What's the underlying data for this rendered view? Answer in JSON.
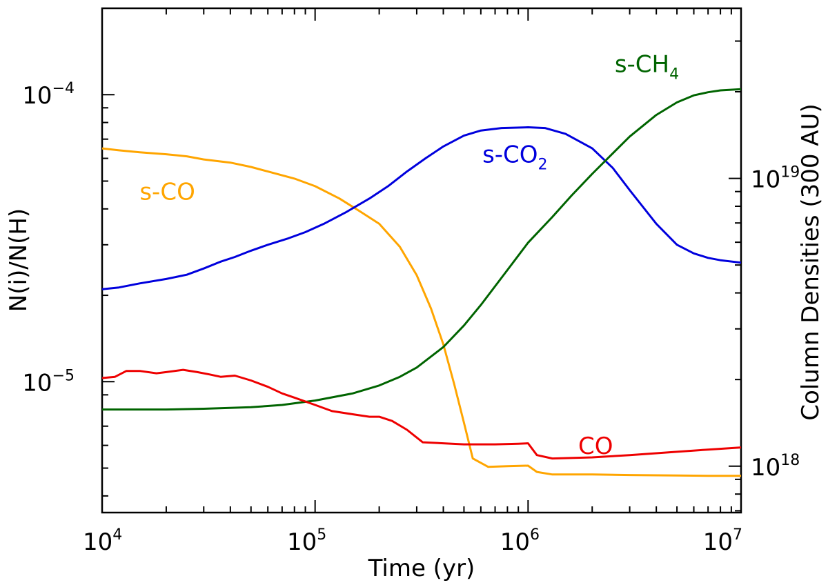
{
  "chart_data": {
    "type": "line",
    "x_scale": "log",
    "y_scale": "log",
    "xlim": [
      10000,
      10000000
    ],
    "ylim": [
      3.5e-06,
      0.0002
    ],
    "xlabel": "Time (yr)",
    "ylabel": "N(i)/N(H)",
    "ylabel_right": "Column Densities (300 AU)",
    "x_ticks": [
      {
        "value": 10000.0,
        "base": "10",
        "exp": "4"
      },
      {
        "value": 100000.0,
        "base": "10",
        "exp": "5"
      },
      {
        "value": 1000000.0,
        "base": "10",
        "exp": "6"
      },
      {
        "value": 10000000.0,
        "base": "10",
        "exp": "7"
      }
    ],
    "y_ticks": [
      {
        "value": 1e-05,
        "base": "10",
        "exp": "−5"
      },
      {
        "value": 0.0001,
        "base": "10",
        "exp": "−4"
      }
    ],
    "right_axis": {
      "ylim": [
        6.9e+17,
        3.9e+19
      ],
      "ticks": [
        {
          "value": 1e+18,
          "base": "10",
          "exp": "18"
        },
        {
          "value": 1e+19,
          "base": "10",
          "exp": "19"
        }
      ]
    },
    "series": [
      {
        "name": "s-CO",
        "label_main": "s-CO",
        "label_sub": "",
        "color": "#ffa500",
        "x": [
          10000.0,
          12000.0,
          15000.0,
          20000.0,
          25000.0,
          30000.0,
          40000.0,
          50000.0,
          60000.0,
          80000.0,
          100000.0,
          130000.0,
          160000.0,
          200000.0,
          250000.0,
          300000.0,
          350000.0,
          400000.0,
          450000.0,
          500000.0,
          550000.0,
          650000.0,
          800000.0,
          1000000.0,
          1100000.0,
          1300000.0,
          2000000.0,
          3000000.0,
          5000000.0,
          7000000.0,
          10000000.0
        ],
        "y": [
          6.5e-05,
          6.4e-05,
          6.3e-05,
          6.2e-05,
          6.1e-05,
          5.95e-05,
          5.8e-05,
          5.6e-05,
          5.4e-05,
          5.1e-05,
          4.8e-05,
          4.35e-05,
          3.95e-05,
          3.55e-05,
          2.95e-05,
          2.35e-05,
          1.8e-05,
          1.35e-05,
          9.8e-06,
          7.2e-06,
          5.4e-06,
          5.05e-06,
          5.08e-06,
          5.1e-06,
          4.85e-06,
          4.75e-06,
          4.75e-06,
          4.73e-06,
          4.71e-06,
          4.7e-06,
          4.7e-06
        ]
      },
      {
        "name": "s-CO2",
        "label_main": "s-CO",
        "label_sub": "2",
        "color": "#0000dd",
        "x": [
          10000.0,
          12000.0,
          15000.0,
          20000.0,
          25000.0,
          30000.0,
          36000.0,
          42000.0,
          50000.0,
          60000.0,
          75000.0,
          90000.0,
          110000.0,
          140000.0,
          180000.0,
          220000.0,
          270000.0,
          330000.0,
          400000.0,
          500000.0,
          600000.0,
          750000.0,
          1000000.0,
          1200000.0,
          1500000.0,
          2000000.0,
          2500000.0,
          3000000.0,
          4000000.0,
          5000000.0,
          6000000.0,
          7000000.0,
          8000000.0,
          10000000.0
        ],
        "y": [
          2.1e-05,
          2.13e-05,
          2.2e-05,
          2.28e-05,
          2.36e-05,
          2.48e-05,
          2.62e-05,
          2.72e-05,
          2.86e-05,
          3e-05,
          3.16e-05,
          3.32e-05,
          3.55e-05,
          3.9e-05,
          4.35e-05,
          4.8e-05,
          5.4e-05,
          6e-05,
          6.6e-05,
          7.2e-05,
          7.5e-05,
          7.65e-05,
          7.7e-05,
          7.65e-05,
          7.3e-05,
          6.5e-05,
          5.55e-05,
          4.65e-05,
          3.55e-05,
          3e-05,
          2.8e-05,
          2.7e-05,
          2.65e-05,
          2.6e-05
        ]
      },
      {
        "name": "s-CH4",
        "label_main": "s-CH",
        "label_sub": "4",
        "color": "#006400",
        "x": [
          10000.0,
          20000.0,
          30000.0,
          50000.0,
          70000.0,
          100000.0,
          150000.0,
          200000.0,
          250000.0,
          300000.0,
          400000.0,
          500000.0,
          600000.0,
          800000.0,
          1000000.0,
          1300000.0,
          1600000.0,
          2000000.0,
          2500000.0,
          3000000.0,
          4000000.0,
          5000000.0,
          6000000.0,
          7000000.0,
          8000000.0,
          10000000.0
        ],
        "y": [
          8e-06,
          8e-06,
          8.05e-06,
          8.15e-06,
          8.3e-06,
          8.6e-06,
          9.1e-06,
          9.7e-06,
          1.04e-05,
          1.12e-05,
          1.32e-05,
          1.57e-05,
          1.85e-05,
          2.45e-05,
          3.05e-05,
          3.75e-05,
          4.45e-05,
          5.3e-05,
          6.25e-05,
          7.15e-05,
          8.5e-05,
          9.4e-05,
          9.95e-05,
          0.000102,
          0.0001035,
          0.0001045
        ]
      },
      {
        "name": "CO",
        "label_main": "CO",
        "label_sub": "",
        "color": "#ee0000",
        "x": [
          10000.0,
          11500.0,
          13000.0,
          15000.0,
          18000.0,
          20000.0,
          24000.0,
          28000.0,
          32000.0,
          36000.0,
          42000.0,
          50000.0,
          60000.0,
          70000.0,
          80000.0,
          100000.0,
          120000.0,
          150000.0,
          180000.0,
          200000.0,
          230000.0,
          270000.0,
          320000.0,
          400000.0,
          500000.0,
          700000.0,
          900000.0,
          1000000.0,
          1100000.0,
          1300000.0,
          2000000.0,
          3000000.0,
          5000000.0,
          7000000.0,
          10000000.0
        ],
        "y": [
          1.03e-05,
          1.04e-05,
          1.09e-05,
          1.09e-05,
          1.07e-05,
          1.08e-05,
          1.1e-05,
          1.08e-05,
          1.06e-05,
          1.04e-05,
          1.05e-05,
          1.01e-05,
          9.6e-06,
          9.1e-06,
          8.8e-06,
          8.3e-06,
          7.9e-06,
          7.7e-06,
          7.55e-06,
          7.55e-06,
          7.3e-06,
          6.8e-06,
          6.15e-06,
          6.1e-06,
          6.05e-06,
          6.05e-06,
          6.08e-06,
          6.1e-06,
          5.55e-06,
          5.4e-06,
          5.45e-06,
          5.55e-06,
          5.7e-06,
          5.8e-06,
          5.9e-06
        ]
      }
    ],
    "annotations": [
      {
        "series": "s-CO",
        "main": "s-CO",
        "sub": "",
        "x": 15000.0,
        "y": 4.3e-05
      },
      {
        "series": "s-CO2",
        "main": "s-CO",
        "sub": "2",
        "x": 610000.0,
        "y": 5.8e-05
      },
      {
        "series": "s-CH4",
        "main": "s-CH",
        "sub": "4",
        "x": 2550000.0,
        "y": 0.00012
      },
      {
        "series": "CO",
        "main": "CO",
        "sub": "",
        "x": 1720000.0,
        "y": 5.6e-06
      }
    ]
  }
}
